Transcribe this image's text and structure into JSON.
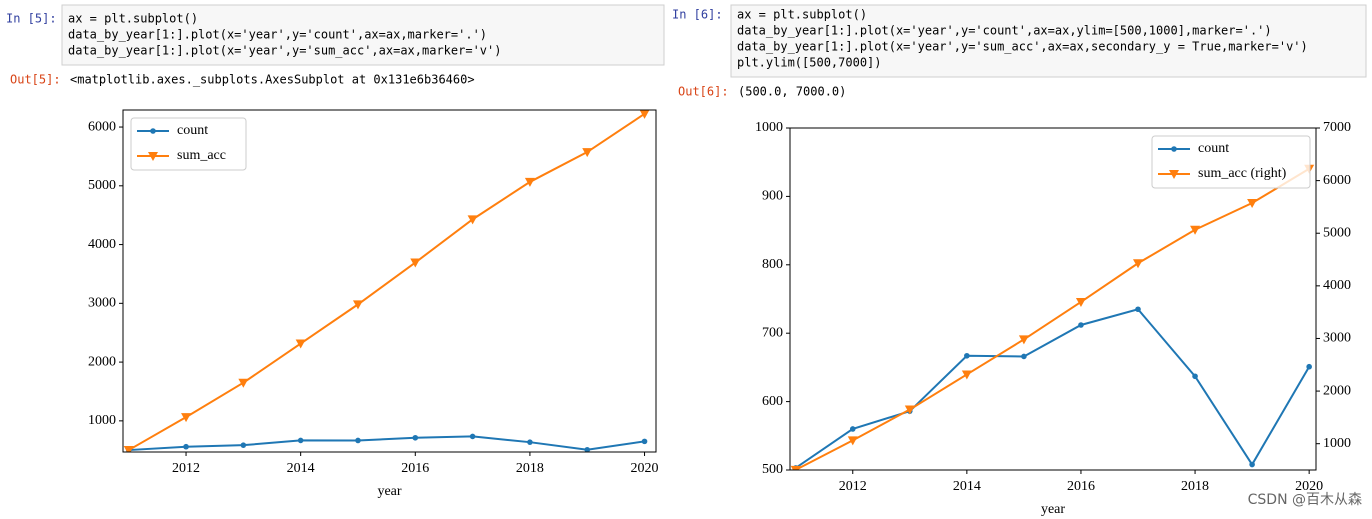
{
  "cells": [
    {
      "prompt": "In  [5]:",
      "code": [
        "ax = plt.subplot()",
        "data_by_year[1:].plot(x='year',y='count',ax=ax,marker='.')",
        "data_by_year[1:].plot(x='year',y='sum_acc',ax=ax,marker='v')"
      ],
      "out_prompt": "Out[5]:",
      "output": "<matplotlib.axes._subplots.AxesSubplot at 0x131e6b36460>"
    },
    {
      "prompt": "In  [6]:",
      "code": [
        "ax = plt.subplot()",
        "data_by_year[1:].plot(x='year',y='count',ax=ax,ylim=[500,1000],marker='.')",
        "data_by_year[1:].plot(x='year',y='sum_acc',ax=ax,secondary_y = True,marker='v')",
        "plt.ylim([500,7000])"
      ],
      "out_prompt": "Out[6]:",
      "output": "(500.0, 7000.0)"
    }
  ],
  "chart_data": [
    {
      "type": "line",
      "xlabel": "year",
      "x": [
        2011,
        2012,
        2013,
        2014,
        2015,
        2016,
        2017,
        2018,
        2019,
        2020
      ],
      "xlim": [
        2010.9,
        2020.2
      ],
      "xticks": [
        2012,
        2014,
        2016,
        2018,
        2020
      ],
      "ylim": [
        470,
        6290
      ],
      "yticks": [
        1000,
        2000,
        3000,
        4000,
        5000,
        6000
      ],
      "legend": "upper left",
      "series": [
        {
          "name": "count",
          "color": "#1f77b4",
          "marker": ".",
          "values": [
            503,
            560,
            586,
            667,
            666,
            712,
            735,
            637,
            508,
            651
          ]
        },
        {
          "name": "sum_acc",
          "color": "#ff7f0e",
          "marker": "v",
          "values": [
            503,
            1063,
            1649,
            2316,
            2982,
            3694,
            4429,
            5066,
            5574,
            6225
          ]
        }
      ]
    },
    {
      "type": "line",
      "xlabel": "year",
      "x": [
        2011,
        2012,
        2013,
        2014,
        2015,
        2016,
        2017,
        2018,
        2019,
        2020
      ],
      "xlim": [
        2010.9,
        2020.12
      ],
      "xticks": [
        2012,
        2014,
        2016,
        2018,
        2020
      ],
      "ylim": [
        500,
        1000
      ],
      "yticks": [
        500,
        600,
        700,
        800,
        900,
        1000
      ],
      "y2lim": [
        500,
        7000
      ],
      "y2ticks": [
        1000,
        2000,
        3000,
        4000,
        5000,
        6000,
        7000
      ],
      "legend": "upper right",
      "series": [
        {
          "name": "count",
          "color": "#1f77b4",
          "marker": ".",
          "values": [
            503,
            560,
            586,
            667,
            666,
            712,
            735,
            637,
            508,
            651
          ]
        },
        {
          "name": "sum_acc (right)",
          "color": "#ff7f0e",
          "marker": "v",
          "axis": "y2",
          "values": [
            503,
            1063,
            1649,
            2316,
            2982,
            3694,
            4429,
            5066,
            5574,
            6225
          ]
        }
      ]
    }
  ],
  "watermark": "CSDN @百木从森"
}
